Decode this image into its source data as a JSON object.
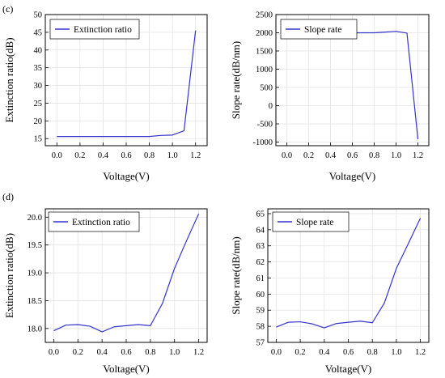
{
  "panel_labels": [
    "(c)",
    "(d)"
  ],
  "chart_data": [
    {
      "type": "line",
      "xlabel": "Voltage(V)",
      "ylabel": "Extinction ratio(dB)",
      "xlim": [
        -0.1,
        1.3
      ],
      "ylim": [
        13,
        50
      ],
      "xticks": [
        0.0,
        0.2,
        0.4,
        0.6,
        0.8,
        1.0,
        1.2
      ],
      "yticks": [
        15,
        20,
        25,
        30,
        35,
        40,
        45,
        50
      ],
      "xtick_decimals": 1,
      "ytick_decimals": 0,
      "grid": true,
      "legend_position": "top-left",
      "series": [
        {
          "name": "Extinction ratio",
          "x": [
            0.0,
            0.1,
            0.2,
            0.3,
            0.4,
            0.5,
            0.6,
            0.7,
            0.8,
            0.9,
            1.0,
            1.1,
            1.2
          ],
          "y": [
            15.6,
            15.6,
            15.6,
            15.6,
            15.6,
            15.6,
            15.6,
            15.6,
            15.6,
            15.9,
            16.0,
            17.2,
            45.5
          ]
        }
      ]
    },
    {
      "type": "line",
      "xlabel": "Voltage(V)",
      "ylabel": "Slope rate(dB/nm)",
      "xlim": [
        -0.1,
        1.3
      ],
      "ylim": [
        -1100,
        2500
      ],
      "xticks": [
        0.0,
        0.2,
        0.4,
        0.6,
        0.8,
        1.0,
        1.2
      ],
      "yticks": [
        -1000,
        -500,
        0,
        500,
        1000,
        1500,
        2000,
        2500
      ],
      "xtick_decimals": 1,
      "ytick_decimals": 0,
      "grid": true,
      "legend_position": "top-left",
      "series": [
        {
          "name": "Slope rate",
          "x": [
            0.0,
            0.1,
            0.2,
            0.3,
            0.4,
            0.5,
            0.6,
            0.7,
            0.8,
            0.9,
            1.0,
            1.1,
            1.2
          ],
          "y": [
            2000,
            2000,
            2000,
            2000,
            2000,
            2000,
            2000,
            2000,
            2000,
            2020,
            2040,
            1990,
            -920
          ]
        }
      ]
    },
    {
      "type": "line",
      "xlabel": "Voltage(V)",
      "ylabel": "Extinction ratio(dB)",
      "xlim": [
        -0.07,
        1.27
      ],
      "ylim": [
        17.75,
        20.15
      ],
      "xticks": [
        0.0,
        0.2,
        0.4,
        0.6,
        0.8,
        1.0,
        1.2
      ],
      "yticks": [
        18.0,
        18.5,
        19.0,
        19.5,
        20.0
      ],
      "xtick_decimals": 1,
      "ytick_decimals": 1,
      "grid": true,
      "legend_position": "top-left",
      "series": [
        {
          "name": "Extinction ratio",
          "x": [
            0.0,
            0.1,
            0.2,
            0.3,
            0.4,
            0.5,
            0.6,
            0.7,
            0.8,
            0.9,
            1.0,
            1.1,
            1.2
          ],
          "y": [
            17.96,
            18.06,
            18.07,
            18.04,
            17.94,
            18.03,
            18.05,
            18.07,
            18.05,
            18.45,
            19.08,
            19.58,
            20.06
          ]
        }
      ]
    },
    {
      "type": "line",
      "xlabel": "Voltage(V)",
      "ylabel": "Slope rate(dB/nm)",
      "xlim": [
        -0.07,
        1.27
      ],
      "ylim": [
        57,
        65.3
      ],
      "xticks": [
        0.0,
        0.2,
        0.4,
        0.6,
        0.8,
        1.0,
        1.2
      ],
      "yticks": [
        57,
        58,
        59,
        60,
        61,
        62,
        63,
        64,
        65
      ],
      "xtick_decimals": 1,
      "ytick_decimals": 0,
      "grid": true,
      "legend_position": "top-left",
      "series": [
        {
          "name": "Slope rate",
          "x": [
            0.0,
            0.1,
            0.2,
            0.3,
            0.4,
            0.5,
            0.6,
            0.7,
            0.8,
            0.9,
            1.0,
            1.1,
            1.2
          ],
          "y": [
            57.95,
            58.25,
            58.28,
            58.15,
            57.9,
            58.17,
            58.25,
            58.32,
            58.22,
            59.45,
            61.6,
            63.15,
            64.72
          ]
        }
      ]
    }
  ]
}
